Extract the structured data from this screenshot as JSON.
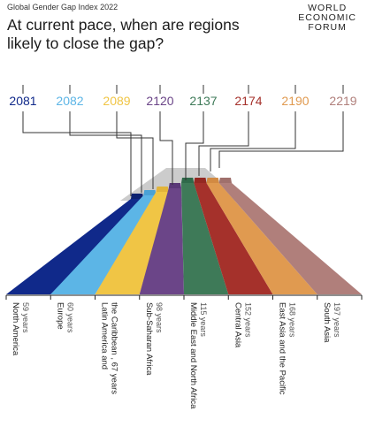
{
  "header": {
    "source": "Global Gender Gap Index 2022",
    "title_line1": "At current pace, when are regions",
    "title_line2": "likely to close the gap?",
    "logo_line1": "WORLD",
    "logo_line2": "ECONOMIC",
    "logo_line3": "FORUM"
  },
  "chart_data": {
    "type": "bar",
    "title": "At current pace, when are regions likely to close the gap?",
    "subtitle": "Global Gender Gap Index 2022",
    "categories": [
      "North America",
      "Europe",
      "Latin America and the Caribbean",
      "Sub-Saharan Africa",
      "Middle East and North Africa",
      "Central Asia",
      "East Asia and the Pacific",
      "South Asia"
    ],
    "series": [
      {
        "values": [
          2081,
          2082,
          2089,
          2120,
          2137,
          2174,
          2190,
          2219
        ]
      },
      {
        "values": [
          59,
          60,
          67,
          98,
          115,
          152,
          168,
          197
        ]
      }
    ],
    "year_labels": [
      "2081",
      "2082",
      "2089",
      "2120",
      "2137",
      "2174",
      "2190",
      "2219"
    ],
    "region_labels": [
      "North America",
      "Europe",
      [
        "Latin America and",
        "the Caribbean , 67 years"
      ],
      "Sub-Saharan Africa",
      "Middle East and North Africa",
      "Central Asia",
      "East Asia and the Pacific",
      "South Asia"
    ],
    "years_labels": [
      "59 years",
      "60 years",
      "",
      "98 years",
      "115 years",
      "152 years",
      "168 years",
      "197 years"
    ],
    "colors": [
      "#10298a",
      "#5cb5e6",
      "#f0c545",
      "#6b4588",
      "#3e7a58",
      "#a5312b",
      "#e09a50",
      "#b07f7b"
    ],
    "colors_top": [
      "#0c2170",
      "#4aa2d6",
      "#e2b43a",
      "#5a3878",
      "#2f6a4a",
      "#942822",
      "#d28a42",
      "#a0706c"
    ],
    "top_color": "#cccccc",
    "legend": "none",
    "grid": false
  }
}
